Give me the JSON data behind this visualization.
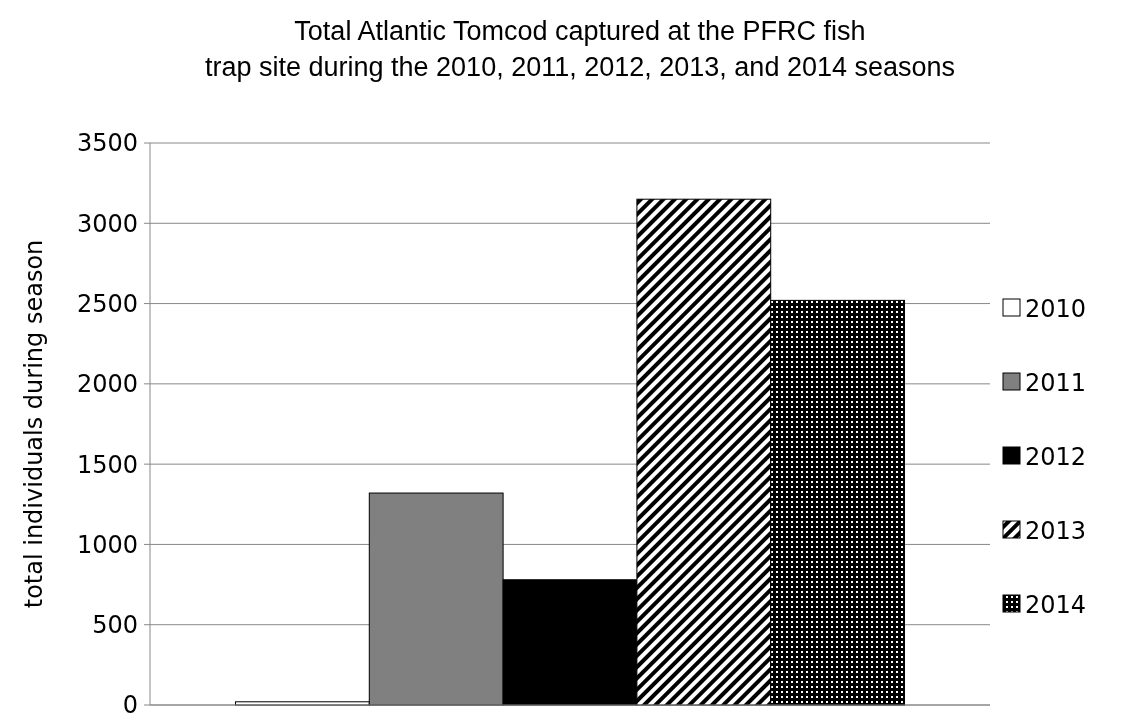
{
  "chart_data": {
    "type": "bar",
    "title": "Total Atlantic Tomcod captured at the PFRC fish\ntrap site during the 2010, 2011, 2012, 2013, and 2014 seasons",
    "ylabel": "total individuals during season",
    "categories": [
      null
    ],
    "series": [
      {
        "name": "2010",
        "color": "#ffffff",
        "values": [
          20
        ]
      },
      {
        "name": "2011",
        "color": "#808080",
        "values": [
          1320
        ]
      },
      {
        "name": "2012",
        "color": "#000000",
        "values": [
          780
        ]
      },
      {
        "name": "2013",
        "color": "#000000",
        "values": [
          3150
        ]
      },
      {
        "name": "2014",
        "color": "#000000",
        "values": [
          2520
        ]
      }
    ],
    "ylim": [
      0,
      3500
    ],
    "yticks": [
      0,
      500,
      1000,
      1500,
      2000,
      2500,
      3000,
      3500
    ],
    "grid": "y",
    "legend": "right"
  }
}
